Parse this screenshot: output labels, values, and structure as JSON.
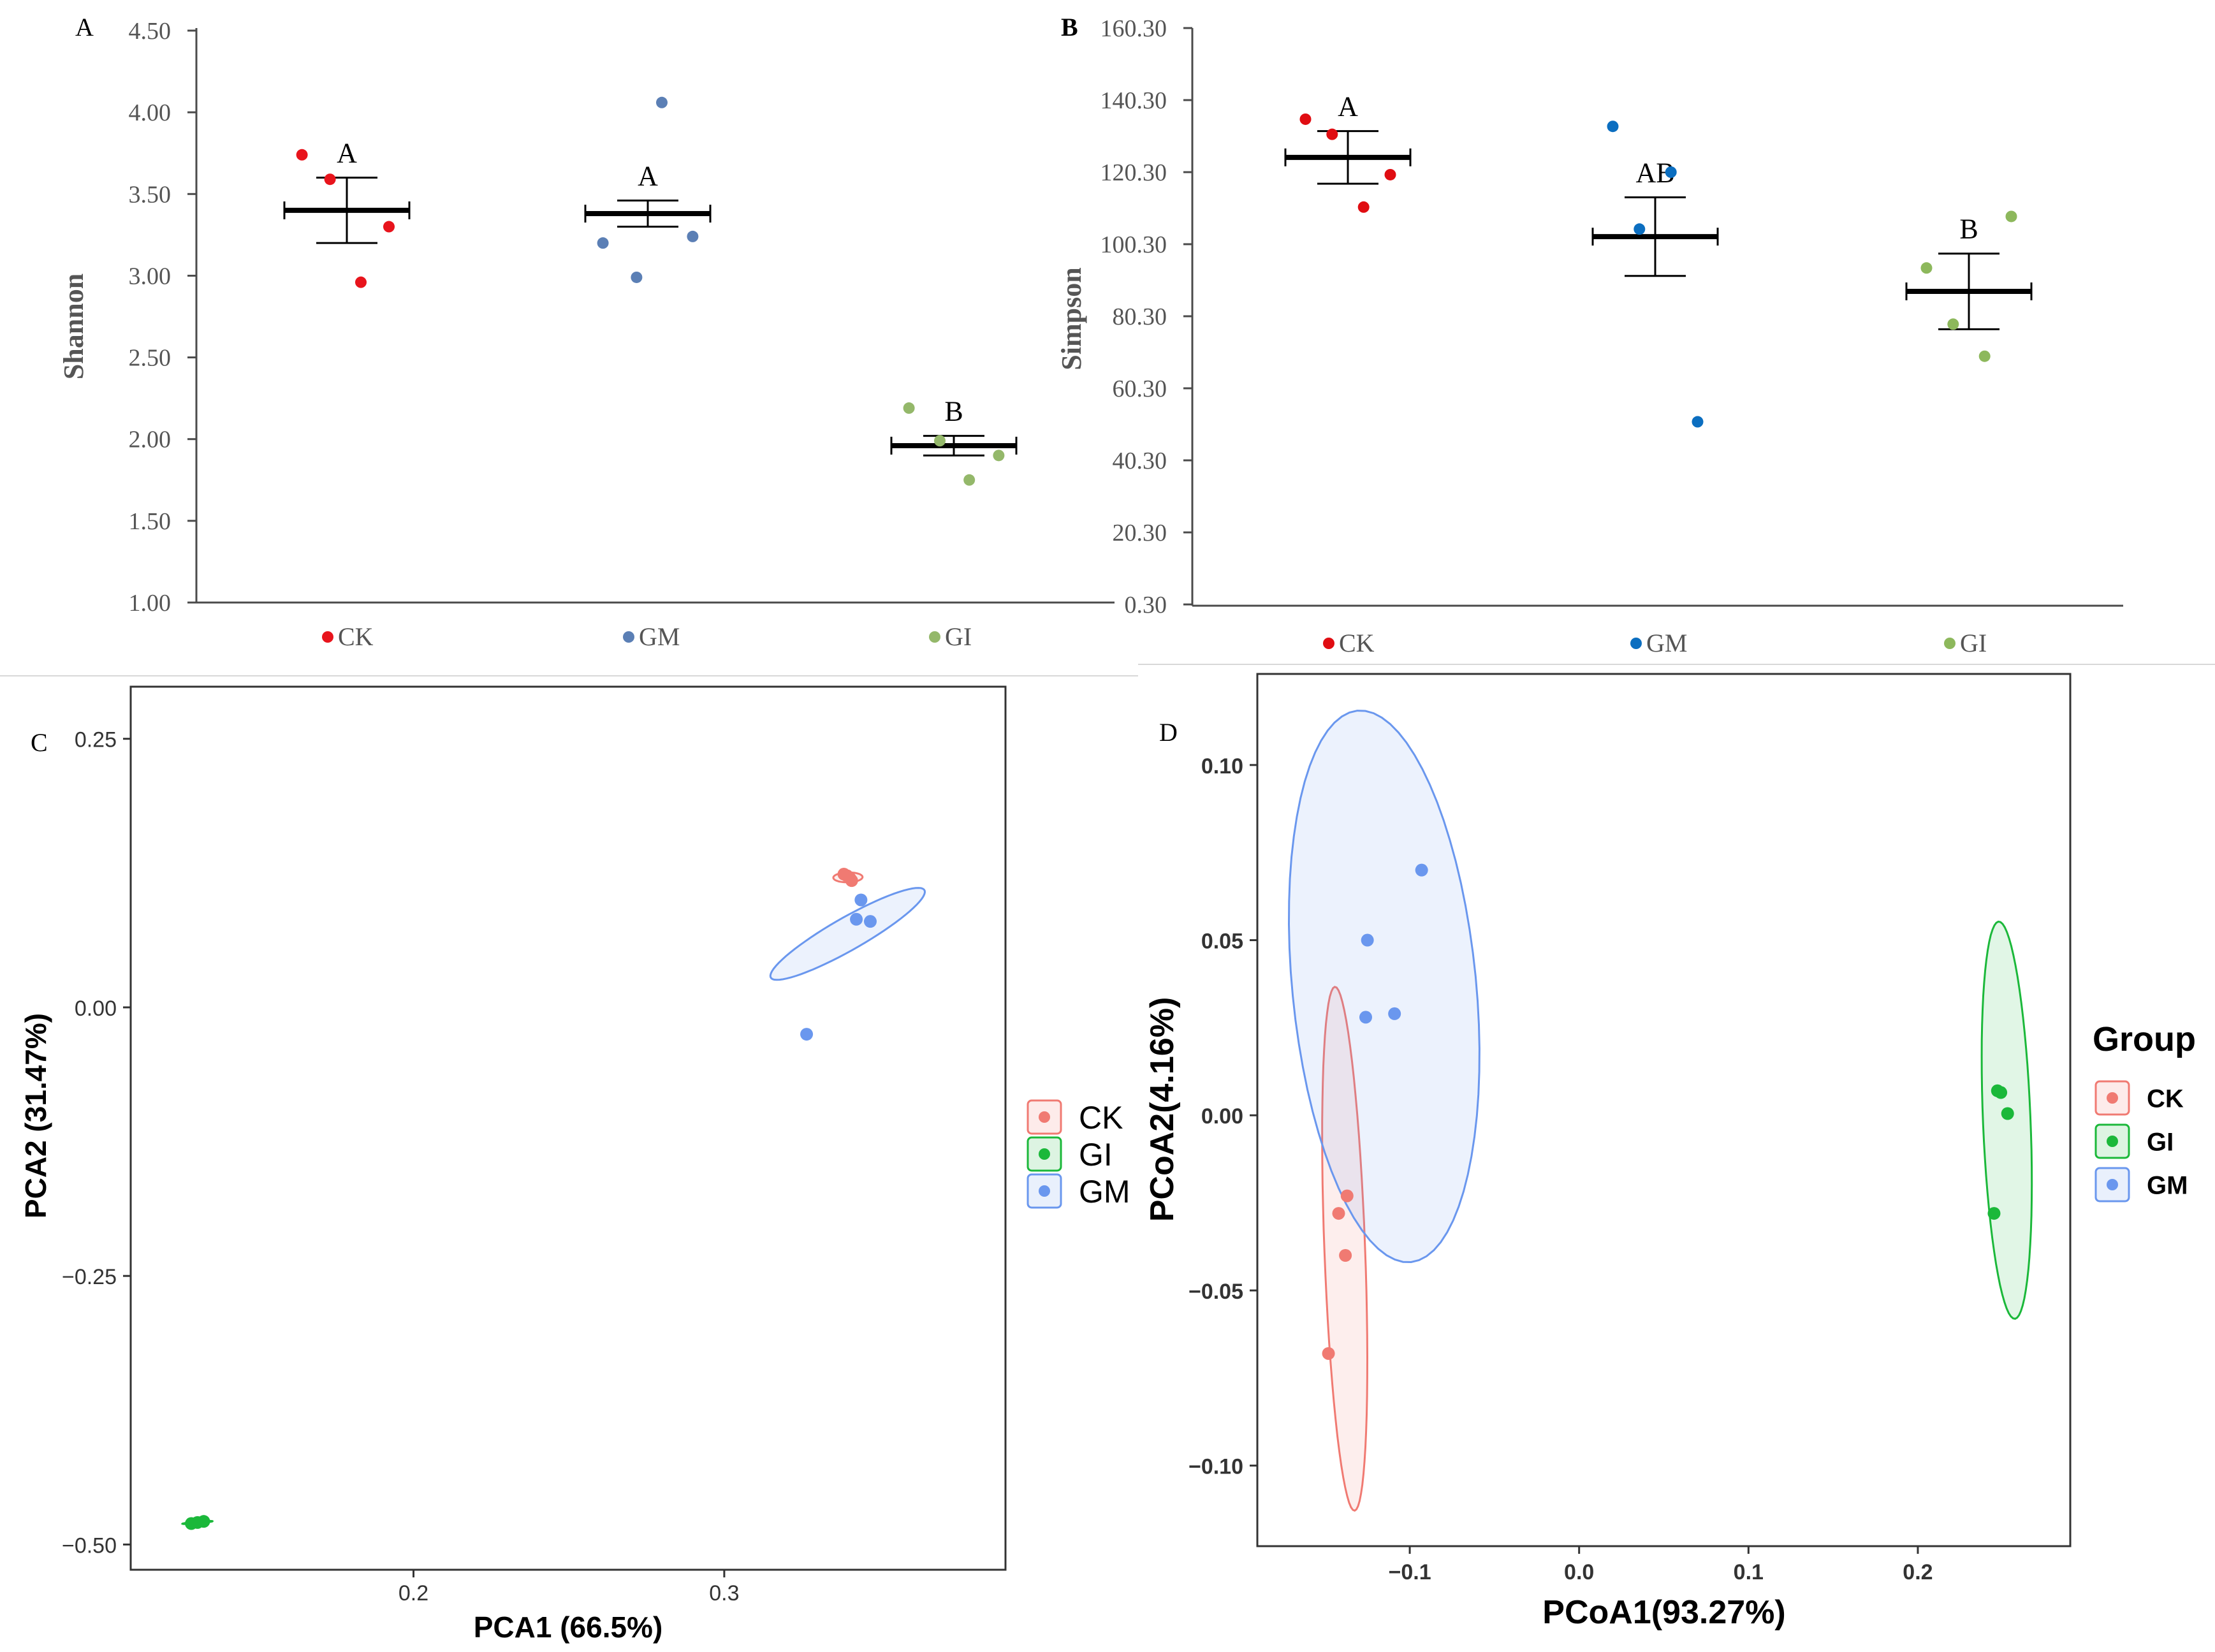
{
  "panel_labels": {
    "A": "A",
    "B": "B",
    "C": "C",
    "D": "D"
  },
  "colors": {
    "A": {
      "CK": "#e8141c",
      "GM": "#5b7fb5",
      "GI": "#94b86a"
    },
    "B": {
      "CK": "#e00d12",
      "GM": "#0b6ec0",
      "GI": "#8db85c"
    },
    "C": {
      "CK": "#f07a72",
      "GI": "#1bb83a",
      "GM": "#6a97ee"
    },
    "D": {
      "CK": "#f07a72",
      "GI": "#1bb83a",
      "GM": "#6a97ee"
    }
  },
  "chart_data": [
    {
      "type": "scatter",
      "panel": "A",
      "title": "",
      "xlabel": "",
      "ylabel": "Shannon",
      "ylim": [
        1.0,
        4.5
      ],
      "yticks": [
        "1.00",
        "1.50",
        "2.00",
        "2.50",
        "3.00",
        "3.50",
        "4.00",
        "4.50"
      ],
      "categories": [
        "CK",
        "GM",
        "GI"
      ],
      "series": [
        {
          "name": "CK",
          "points": [
            [
              -0.32,
              3.74
            ],
            [
              -0.12,
              3.59
            ],
            [
              0.3,
              3.3
            ],
            [
              0.1,
              2.96
            ]
          ],
          "mean": 3.4,
          "error": 0.2,
          "letter": "A"
        },
        {
          "name": "GM",
          "points": [
            [
              0.1,
              4.06
            ],
            [
              -0.32,
              3.2
            ],
            [
              0.32,
              3.24
            ],
            [
              -0.08,
              2.99
            ]
          ],
          "mean": 3.38,
          "error": 0.08,
          "letter": "A"
        },
        {
          "name": "GI",
          "points": [
            [
              -0.32,
              2.19
            ],
            [
              -0.1,
              1.99
            ],
            [
              0.32,
              1.9
            ],
            [
              0.11,
              1.75
            ]
          ],
          "mean": 1.96,
          "error": 0.06,
          "letter": "B"
        }
      ],
      "legend": [
        "CK",
        "GM",
        "GI"
      ]
    },
    {
      "type": "scatter",
      "panel": "B",
      "title": "",
      "xlabel": "",
      "ylabel": "Simpson",
      "ylim": [
        0.3,
        160.3
      ],
      "yticks": [
        "0.30",
        "20.30",
        "40.30",
        "60.30",
        "80.30",
        "100.30",
        "120.30",
        "140.30",
        "160.30"
      ],
      "categories": [
        "CK",
        "GM",
        "GI"
      ],
      "series": [
        {
          "name": "CK",
          "points": [
            [
              -0.35,
              135.0
            ],
            [
              -0.13,
              130.8
            ],
            [
              0.35,
              119.6
            ],
            [
              0.13,
              110.6
            ]
          ],
          "mean": 124.4,
          "error": 7.3,
          "letter": "A"
        },
        {
          "name": "GM",
          "points": [
            [
              -0.35,
              133.0
            ],
            [
              0.13,
              120.3
            ],
            [
              -0.13,
              104.5
            ],
            [
              0.35,
              51.0
            ]
          ],
          "mean": 102.4,
          "error": 10.9,
          "letter": "AB"
        },
        {
          "name": "GI",
          "points": [
            [
              0.35,
              108.0
            ],
            [
              -0.35,
              93.7
            ],
            [
              -0.13,
              78.1
            ],
            [
              0.13,
              69.2
            ]
          ],
          "mean": 87.2,
          "error": 10.5,
          "letter": "B"
        }
      ],
      "legend": [
        "CK",
        "GM",
        "GI"
      ]
    },
    {
      "type": "scatter",
      "panel": "C",
      "title": "",
      "xlabel": "PCA1 (66.5%)",
      "ylabel": "PCA2 (31.47%)",
      "xlim": [
        0.109,
        0.3905
      ],
      "ylim": [
        -0.5235,
        0.2985
      ],
      "xticks": [
        0.2,
        0.3
      ],
      "xtick_labels": [
        "0.2",
        "0.3"
      ],
      "yticks": [
        0.25,
        0.0,
        -0.25,
        -0.5
      ],
      "ytick_labels": [
        "0.25",
        "0.00",
        "−0.25",
        "−0.50"
      ],
      "series": [
        {
          "name": "CK",
          "points": [
            [
              0.3385,
              0.124
            ],
            [
              0.3395,
              0.1225
            ],
            [
              0.3405,
              0.12
            ],
            [
              0.341,
              0.118
            ]
          ],
          "ellipse": {
            "center": [
              0.3398,
              0.121
            ],
            "semi_axes": [
              0.0048,
              0.0045
            ],
            "angle_deg": 35
          }
        },
        {
          "name": "GI",
          "points": [
            [
              0.1285,
              -0.4805
            ],
            [
              0.1305,
              -0.4795
            ],
            [
              0.1325,
              -0.4785
            ]
          ],
          "ellipse": {
            "center": [
              0.1305,
              -0.4795
            ],
            "semi_axes": [
              0.005,
              0.0008
            ],
            "angle_deg": 14
          }
        },
        {
          "name": "GM",
          "points": [
            [
              0.344,
              0.1
            ],
            [
              0.3425,
              0.082
            ],
            [
              0.347,
              0.08
            ],
            [
              0.3265,
              -0.025
            ]
          ],
          "ellipse": {
            "center": [
              0.3397,
              0.0684
            ],
            "semi_axes": [
              0.0487,
              0.0089
            ],
            "angle_deg": 61
          }
        }
      ],
      "legend": [
        "CK",
        "GI",
        "GM"
      ]
    },
    {
      "type": "scatter",
      "panel": "D",
      "title": "",
      "xlabel": "PCoA1(93.27%)",
      "ylabel": "PCoA2(4.16%)",
      "legend_title": "Group",
      "xlim": [
        -0.19,
        0.29
      ],
      "ylim": [
        -0.123,
        0.126
      ],
      "xticks": [
        -0.1,
        0.0,
        0.1,
        0.2
      ],
      "xtick_labels": [
        "−0.1",
        "0.0",
        "0.1",
        "0.2"
      ],
      "yticks": [
        0.1,
        0.05,
        0.0,
        -0.05,
        -0.1
      ],
      "ytick_labels": [
        "0.10",
        "0.05",
        "0.00",
        "−0.05",
        "−0.10"
      ],
      "series": [
        {
          "name": "CK",
          "points": [
            [
              -0.137,
              -0.023
            ],
            [
              -0.142,
              -0.028
            ],
            [
              -0.138,
              -0.04
            ],
            [
              -0.148,
              -0.068
            ]
          ],
          "ellipse": {
            "center": [
              -0.1384,
              -0.0381
            ],
            "semi_axes": [
              0.012,
              0.075
            ],
            "angle_deg": 4.5
          }
        },
        {
          "name": "GI",
          "points": [
            [
              0.247,
              0.007
            ],
            [
              0.249,
              0.0065
            ],
            [
              0.253,
              0.0005
            ],
            [
              0.245,
              -0.028
            ]
          ],
          "ellipse": {
            "center": [
              0.2525,
              -0.0014
            ],
            "semi_axes": [
              0.014,
              0.0569
            ],
            "angle_deg": 5.0
          }
        },
        {
          "name": "GM",
          "points": [
            [
              -0.093,
              0.07
            ],
            [
              -0.125,
              0.05
            ],
            [
              -0.126,
              0.028
            ],
            [
              -0.109,
              0.029
            ]
          ],
          "ellipse": {
            "center": [
              -0.1151,
              0.0368
            ],
            "semi_axes": [
              0.053,
              0.081
            ],
            "angle_deg": 18
          }
        }
      ],
      "legend": [
        "CK",
        "GI",
        "GM"
      ]
    }
  ]
}
